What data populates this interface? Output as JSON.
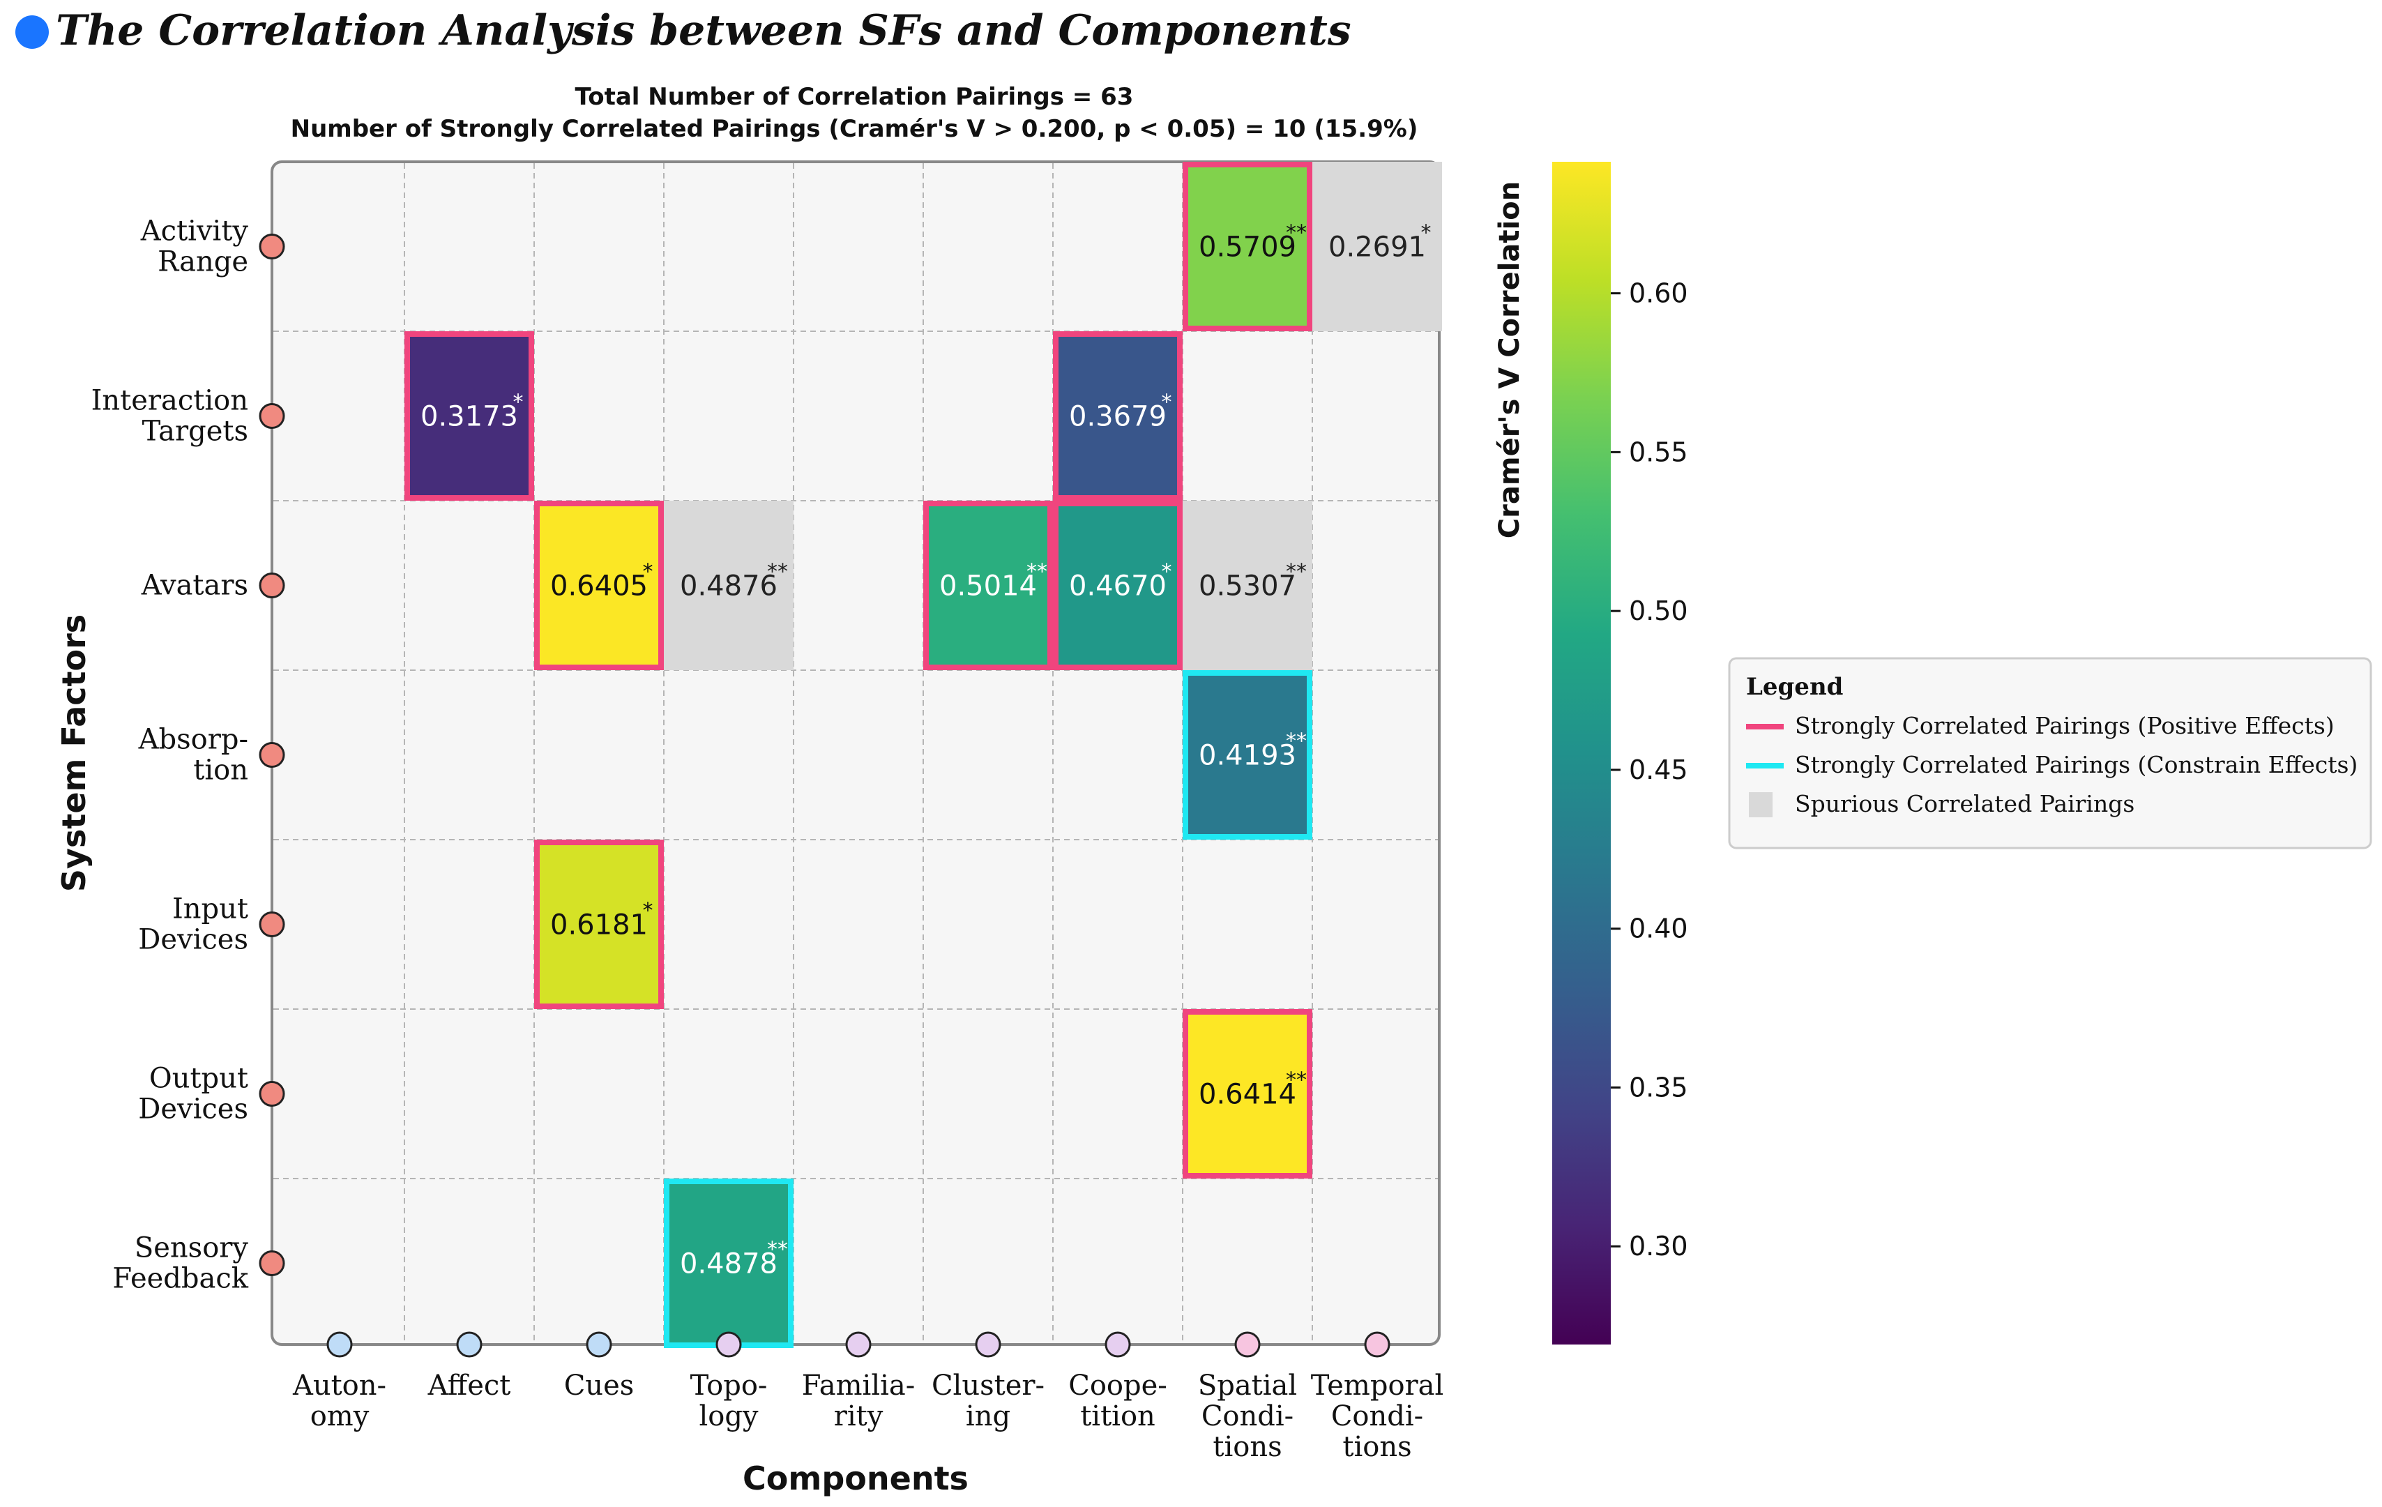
{
  "title": "The Correlation Analysis between SFs and Components",
  "colors": {
    "title_bullet": "#1a75ff",
    "positive_border": "#f0457e",
    "constrain_border": "#1fe8f2",
    "spurious_fill": "#d9d9d9",
    "plot_bg": "#f6f6f6",
    "factor_dot": "#f08a80",
    "component_dots": [
      "#bfdcf7",
      "#bfdcf7",
      "#bfdcf7",
      "#e6cff0",
      "#e6cff0",
      "#e6cff0",
      "#e6cff0",
      "#f7c5e0",
      "#f7c5e0"
    ]
  },
  "chart_data": {
    "type": "heatmap",
    "subtitle_line1": "Total Number of Correlation Pairings = 63",
    "subtitle_line2": "Number of Strongly Correlated Pairings (Cramér's V > 0.200, p < 0.05) = 10 (15.9%)",
    "xlabel": "Components",
    "ylabel": "System Factors",
    "x_categories": [
      [
        "Auton-",
        "omy"
      ],
      [
        "Affect"
      ],
      [
        "Cues"
      ],
      [
        "Topo-",
        "logy"
      ],
      [
        "Familia-",
        "rity"
      ],
      [
        "Cluster-",
        "ing"
      ],
      [
        "Coope-",
        "tition"
      ],
      [
        "Spatial",
        "Condi-",
        "tions"
      ],
      [
        "Temporal",
        "Condi-",
        "tions"
      ]
    ],
    "y_categories": [
      [
        "Activity",
        "Range"
      ],
      [
        "Interaction",
        "Targets"
      ],
      [
        "Avatars"
      ],
      [
        "Absorp-",
        "tion"
      ],
      [
        "Input",
        "Devices"
      ],
      [
        "Output",
        "Devices"
      ],
      [
        "Sensory",
        "Feedback"
      ]
    ],
    "cells": [
      {
        "row": 0,
        "col": 7,
        "value": 0.5709,
        "sig": "**",
        "kind": "positive"
      },
      {
        "row": 0,
        "col": 8,
        "value": 0.2691,
        "sig": "*",
        "kind": "spurious"
      },
      {
        "row": 1,
        "col": 1,
        "value": 0.3173,
        "sig": "*",
        "kind": "positive"
      },
      {
        "row": 1,
        "col": 6,
        "value": 0.3679,
        "sig": "*",
        "kind": "positive"
      },
      {
        "row": 2,
        "col": 2,
        "value": 0.6405,
        "sig": "*",
        "kind": "positive"
      },
      {
        "row": 2,
        "col": 3,
        "value": 0.4876,
        "sig": "**",
        "kind": "spurious"
      },
      {
        "row": 2,
        "col": 5,
        "value": 0.5014,
        "sig": "**",
        "kind": "positive"
      },
      {
        "row": 2,
        "col": 6,
        "value": 0.467,
        "sig": "*",
        "kind": "positive"
      },
      {
        "row": 2,
        "col": 7,
        "value": 0.5307,
        "sig": "**",
        "kind": "spurious"
      },
      {
        "row": 3,
        "col": 7,
        "value": 0.4193,
        "sig": "**",
        "kind": "constrain"
      },
      {
        "row": 4,
        "col": 2,
        "value": 0.6181,
        "sig": "*",
        "kind": "positive"
      },
      {
        "row": 5,
        "col": 7,
        "value": 0.6414,
        "sig": "**",
        "kind": "positive"
      },
      {
        "row": 6,
        "col": 3,
        "value": 0.4878,
        "sig": "**",
        "kind": "constrain"
      }
    ],
    "colorbar": {
      "label": "Cramér's V Correlation",
      "vmin": 0.2691,
      "vmax": 0.6414,
      "ticks": [
        0.3,
        0.35,
        0.4,
        0.45,
        0.5,
        0.55,
        0.6
      ],
      "tick_labels": [
        "0.30",
        "0.35",
        "0.40",
        "0.45",
        "0.50",
        "0.55",
        "0.60"
      ],
      "colormap": "viridis"
    },
    "legend": {
      "title": "Legend",
      "position": "right",
      "items": [
        {
          "label": "Strongly Correlated Pairings (Positive Effects)",
          "kind": "positive"
        },
        {
          "label": "Strongly Correlated Pairings (Constrain Effects)",
          "kind": "constrain"
        },
        {
          "label": "Spurious Correlated Pairings",
          "kind": "spurious"
        }
      ]
    }
  }
}
